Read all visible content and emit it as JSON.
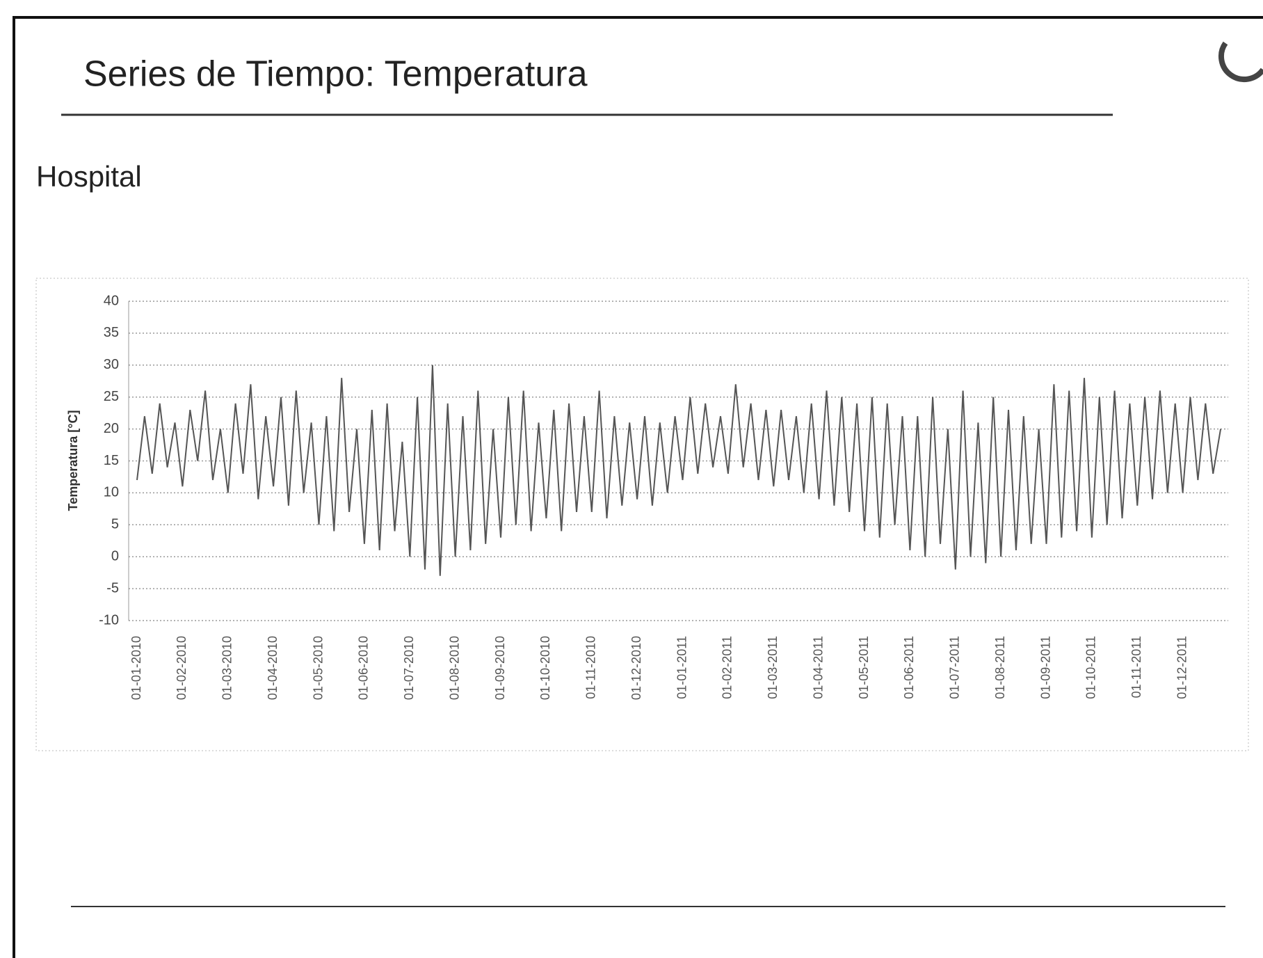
{
  "chart_data": {
    "type": "line",
    "title": "Series de Tiempo: Temperatura",
    "subtitle": "Hospital",
    "ylabel": "Temperatura [°C]",
    "xtick_labels": [
      "01-01-2010",
      "01-02-2010",
      "01-03-2010",
      "01-04-2010",
      "01-05-2010",
      "01-06-2010",
      "01-07-2010",
      "01-08-2010",
      "01-09-2010",
      "01-10-2010",
      "01-11-2010",
      "01-12-2010",
      "01-01-2011",
      "01-02-2011",
      "01-03-2011",
      "01-04-2011",
      "01-05-2011",
      "01-06-2011",
      "01-07-2011",
      "01-08-2011",
      "01-09-2011",
      "01-10-2011",
      "01-11-2011",
      "01-12-2011"
    ],
    "color": "#555555",
    "values": [
      12,
      22,
      13,
      24,
      14,
      21,
      11,
      23,
      15,
      26,
      12,
      20,
      10,
      24,
      13,
      27,
      9,
      22,
      11,
      25,
      8,
      26,
      10,
      21,
      5,
      22,
      4,
      28,
      7,
      20,
      2,
      23,
      1,
      24,
      4,
      18,
      0,
      25,
      -2,
      30,
      -3,
      24,
      0,
      22,
      1,
      26,
      2,
      20,
      3,
      25,
      5,
      26,
      4,
      21,
      6,
      23,
      4,
      24,
      7,
      22,
      7,
      26,
      6,
      22,
      8,
      21,
      9,
      22,
      8,
      21,
      10,
      22,
      12,
      25,
      13,
      24,
      14,
      22,
      13,
      27,
      14,
      24,
      12,
      23,
      11,
      23,
      12,
      22,
      10,
      24,
      9,
      26,
      8,
      25,
      7,
      24,
      4,
      25,
      3,
      24,
      5,
      22,
      1,
      22,
      0,
      25,
      2,
      20,
      -2,
      26,
      0,
      21,
      -1,
      25,
      0,
      23,
      1,
      22,
      2,
      20,
      2,
      27,
      3,
      26,
      4,
      28,
      3,
      25,
      5,
      26,
      6,
      24,
      8,
      25,
      9,
      26,
      10,
      24,
      10,
      25,
      12,
      24,
      13,
      20
    ],
    "ylim": [
      -10,
      40
    ],
    "yticks": [
      -10,
      -5,
      0,
      5,
      10,
      15,
      20,
      25,
      30,
      35,
      40
    ],
    "grid": true
  }
}
